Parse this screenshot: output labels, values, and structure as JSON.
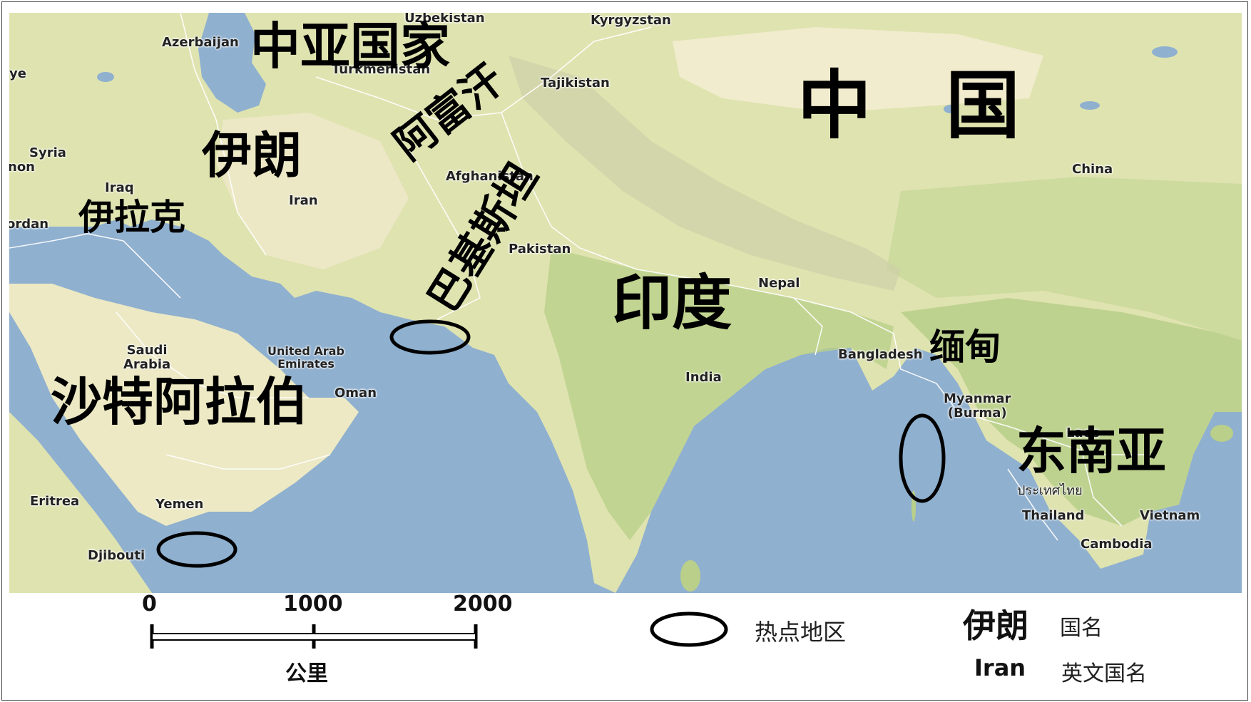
{
  "map": {
    "english_labels": {
      "uzbekistan": "Uzbekistan",
      "kyrgyzstan": "Kyrgyzstan",
      "azerbaijan": "Azerbaijan",
      "turkmenistan": "Turkmenistan",
      "tajikistan": "Tajikistan",
      "syria": "Syria",
      "iraq": "Iraq",
      "jordan": "ordan",
      "lebanon": "non",
      "turkey": "ye",
      "iran": "Iran",
      "afghanistan": "Afghanistan",
      "pakistan": "Pakistan",
      "china": "China",
      "nepal": "Nepal",
      "india": "India",
      "bangladesh": "Bangladesh",
      "myanmar": "Myanmar\n(Burma)",
      "saudi_arabia": "Saudi\nArabia",
      "uae": "United Arab\nEmirates",
      "oman": "Oman",
      "yemen": "Yemen",
      "eritrea": "Eritrea",
      "djibouti": "Djibouti",
      "laos": "Laos",
      "thailand_thai": "ประเทศไทย",
      "thailand": "Thailand",
      "vietnam": "Vietnam",
      "cambodia": "Cambodia"
    },
    "chinese_labels": {
      "central_asia": "中亚国家",
      "china": "中　国",
      "iran": "伊朗",
      "afghanistan": "阿富汗",
      "pakistan": "巴基斯坦",
      "iraq": "伊拉克",
      "india": "印度",
      "myanmar": "缅甸",
      "saudi_arabia": "沙特阿拉伯",
      "southeast_asia": "东南亚"
    },
    "colors": {
      "land": "#dfe3b0",
      "land_green": "#b9cf8a",
      "desert": "#ece9c4",
      "sea": "#8fb0cf",
      "hotspot_outline": "#000000"
    }
  },
  "legend": {
    "scale": {
      "ticks": [
        "0",
        "1000",
        "2000"
      ],
      "unit": "公里"
    },
    "hotspot_label": "热点地区",
    "country_name_sample": "伊朗",
    "country_name_desc": "国名",
    "english_name_sample": "Iran",
    "english_name_desc": "英文国名"
  }
}
